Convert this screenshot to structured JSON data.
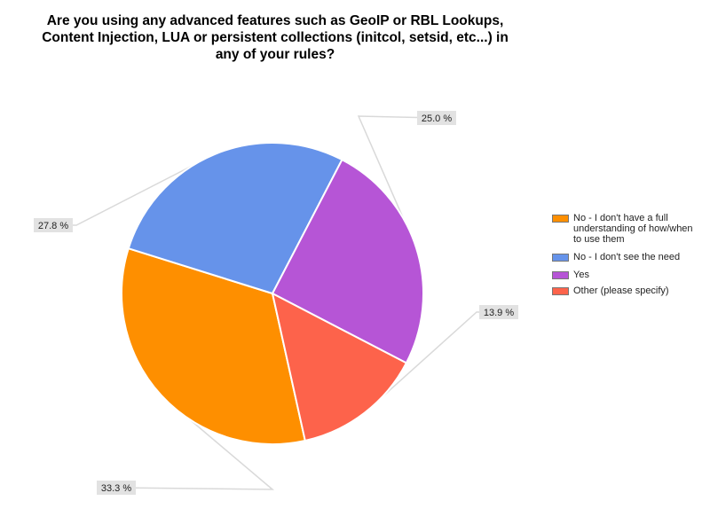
{
  "chart_data": {
    "type": "pie",
    "title": "Are you using any advanced features such as GeoIP or RBL Lookups, Content Injection, LUA or persistent collections (initcol, setsid, etc...) in any of your rules?",
    "categories": [
      "No - I don't have a full understanding of how/when to use them",
      "No - I don't see the need",
      "Yes",
      "Other (please specify)"
    ],
    "values": [
      33.3,
      27.8,
      25.0,
      13.9
    ],
    "value_labels": [
      "33.3 %",
      "27.8 %",
      "25.0 %",
      "13.9 %"
    ],
    "colors": [
      "#fe8f00",
      "#6693ea",
      "#b655d6",
      "#fd634b"
    ],
    "legend": {
      "position": "right",
      "items": [
        {
          "label": "No - I don't have a full understanding of how/when to use them",
          "color": "#fe8f00"
        },
        {
          "label": "No - I don't see the need",
          "color": "#6693ea"
        },
        {
          "label": "Yes",
          "color": "#b655d6"
        },
        {
          "label": "Other (please specify)",
          "color": "#fd634b"
        }
      ]
    }
  }
}
